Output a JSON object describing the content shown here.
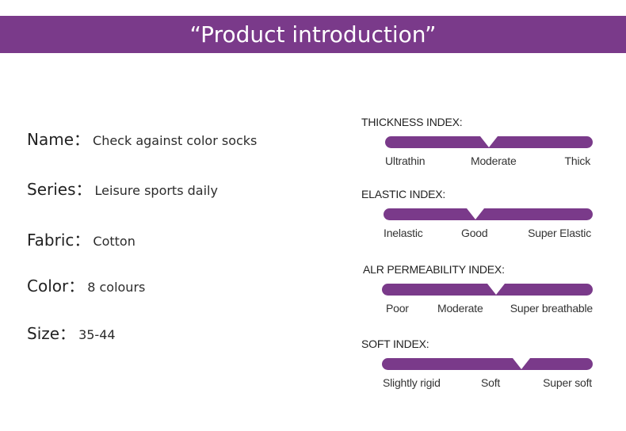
{
  "banner": {
    "title": "“Product introduction”"
  },
  "specs": [
    {
      "label": "Name：",
      "value": "Check against color socks"
    },
    {
      "label": "Series：",
      "value": "Leisure sports daily"
    },
    {
      "label": "Fabric：",
      "value": "Cotton"
    },
    {
      "label": "Color：",
      "value": "8 colours"
    },
    {
      "label": "Size：",
      "value": "35-44"
    }
  ],
  "indices": [
    {
      "title": "THICKNESS INDEX:",
      "level": 0.5,
      "labels": [
        "Ultrathin",
        "Moderate",
        "Thick"
      ]
    },
    {
      "title": "ELASTIC INDEX:",
      "level": 0.44,
      "labels": [
        "Inelastic",
        "Good",
        "Super Elastic"
      ]
    },
    {
      "title": "ALR PERMEABILITY INDEX:",
      "level": 0.54,
      "labels": [
        "Poor",
        "Moderate",
        "Super breathable"
      ]
    },
    {
      "title": "SOFT INDEX:",
      "level": 0.66,
      "labels": [
        "Slightly rigid",
        "Soft",
        "Super soft"
      ]
    }
  ],
  "colors": {
    "accent": "#7a3a8a"
  }
}
